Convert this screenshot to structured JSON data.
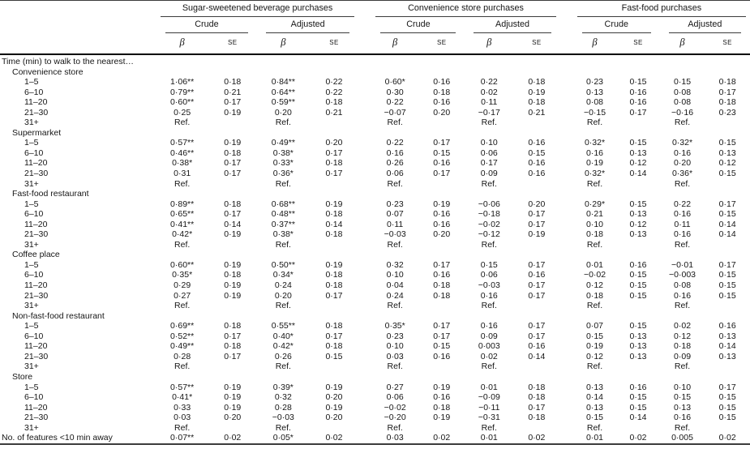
{
  "table": {
    "row_header": "Time (min) to walk to the nearest…",
    "groups": [
      {
        "label": "Sugar-sweetened beverage purchases"
      },
      {
        "label": "Convenience store purchases"
      },
      {
        "label": "Fast-food purchases"
      }
    ],
    "sub_labels": [
      "Crude",
      "Adjusted"
    ],
    "stat_labels": [
      "β",
      "SE"
    ],
    "sections": [
      {
        "label": "Convenience store",
        "rows": [
          {
            "label": "1–5",
            "values": [
              "1·06**",
              "0·18",
              "0·84**",
              "0·22",
              "0·60*",
              "0·16",
              "0·22",
              "0·18",
              "0·23",
              "0·15",
              "0·15",
              "0·18"
            ]
          },
          {
            "label": "6–10",
            "values": [
              "0·79**",
              "0·21",
              "0·64**",
              "0·22",
              "0·30",
              "0·18",
              "0·02",
              "0·19",
              "0·13",
              "0·16",
              "0·08",
              "0·17"
            ]
          },
          {
            "label": "11–20",
            "values": [
              "0·60**",
              "0·17",
              "0·59**",
              "0·18",
              "0·22",
              "0·16",
              "0·11",
              "0·18",
              "0·08",
              "0·16",
              "0·08",
              "0·18"
            ]
          },
          {
            "label": "21–30",
            "values": [
              "0·25",
              "0·19",
              "0·20",
              "0·21",
              "−0·07",
              "0·20",
              "−0·17",
              "0·21",
              "−0·15",
              "0·17",
              "−0·16",
              "0·23"
            ]
          },
          {
            "label": "31+",
            "values": [
              "Ref.",
              "",
              "Ref.",
              "",
              "Ref.",
              "",
              "Ref.",
              "",
              "Ref.",
              "",
              "Ref.",
              ""
            ]
          }
        ]
      },
      {
        "label": "Supermarket",
        "rows": [
          {
            "label": "1–5",
            "values": [
              "0·57**",
              "0·19",
              "0·49**",
              "0·20",
              "0·22",
              "0·17",
              "0·10",
              "0·16",
              "0·32*",
              "0·15",
              "0·32*",
              "0·15"
            ]
          },
          {
            "label": "6–10",
            "values": [
              "0·46**",
              "0·18",
              "0·38*",
              "0·17",
              "0·16",
              "0·15",
              "0·06",
              "0·15",
              "0·16",
              "0·13",
              "0·16",
              "0·13"
            ]
          },
          {
            "label": "11–20",
            "values": [
              "0·38*",
              "0·17",
              "0·33*",
              "0·18",
              "0·26",
              "0·16",
              "0·17",
              "0·16",
              "0·19",
              "0·12",
              "0·20",
              "0·12"
            ]
          },
          {
            "label": "21–30",
            "values": [
              "0·31",
              "0·17",
              "0·36*",
              "0·17",
              "0·06",
              "0·17",
              "0·09",
              "0·16",
              "0·32*",
              "0·14",
              "0·36*",
              "0·15"
            ]
          },
          {
            "label": "31+",
            "values": [
              "Ref.",
              "",
              "Ref.",
              "",
              "Ref.",
              "",
              "Ref.",
              "",
              "Ref.",
              "",
              "Ref.",
              ""
            ]
          }
        ]
      },
      {
        "label": "Fast-food restaurant",
        "rows": [
          {
            "label": "1–5",
            "values": [
              "0·89**",
              "0·18",
              "0·68**",
              "0·19",
              "0·23",
              "0·19",
              "−0·06",
              "0·20",
              "0·29*",
              "0·15",
              "0·22",
              "0·17"
            ]
          },
          {
            "label": "6–10",
            "values": [
              "0·65**",
              "0·17",
              "0·48**",
              "0·18",
              "0·07",
              "0·16",
              "−0·18",
              "0·17",
              "0·21",
              "0·13",
              "0·16",
              "0·15"
            ]
          },
          {
            "label": "11–20",
            "values": [
              "0·41**",
              "0·14",
              "0·37**",
              "0·14",
              "0·11",
              "0·16",
              "−0·02",
              "0·17",
              "0·10",
              "0·12",
              "0·11",
              "0·14"
            ]
          },
          {
            "label": "21–30",
            "values": [
              "0·42*",
              "0·19",
              "0·38*",
              "0·18",
              "−0·03",
              "0·20",
              "−0·12",
              "0·19",
              "0·18",
              "0·13",
              "0·16",
              "0·14"
            ]
          },
          {
            "label": "31+",
            "values": [
              "Ref.",
              "",
              "Ref.",
              "",
              "Ref.",
              "",
              "Ref.",
              "",
              "Ref.",
              "",
              "Ref.",
              ""
            ]
          }
        ]
      },
      {
        "label": "Coffee place",
        "rows": [
          {
            "label": "1–5",
            "values": [
              "0·60**",
              "0·19",
              "0·50**",
              "0·19",
              "0·32",
              "0·17",
              "0·15",
              "0·17",
              "0·01",
              "0·16",
              "−0·01",
              "0·17"
            ]
          },
          {
            "label": "6–10",
            "values": [
              "0·35*",
              "0·18",
              "0·34*",
              "0·18",
              "0·10",
              "0·16",
              "0·06",
              "0·16",
              "−0·02",
              "0·15",
              "−0·003",
              "0·15"
            ]
          },
          {
            "label": "11–20",
            "values": [
              "0·29",
              "0·19",
              "0·24",
              "0·18",
              "0·04",
              "0·18",
              "−0·03",
              "0·17",
              "0·12",
              "0·15",
              "0·08",
              "0·15"
            ]
          },
          {
            "label": "21–30",
            "values": [
              "0·27",
              "0·19",
              "0·20",
              "0·17",
              "0·24",
              "0·18",
              "0·16",
              "0·17",
              "0·18",
              "0·15",
              "0·16",
              "0·15"
            ]
          },
          {
            "label": "31+",
            "values": [
              "Ref.",
              "",
              "Ref.",
              "",
              "Ref.",
              "",
              "Ref.",
              "",
              "Ref.",
              "",
              "Ref.",
              ""
            ]
          }
        ]
      },
      {
        "label": "Non-fast-food restaurant",
        "rows": [
          {
            "label": "1–5",
            "values": [
              "0·69**",
              "0·18",
              "0·55**",
              "0·18",
              "0·35*",
              "0·17",
              "0·16",
              "0·17",
              "0·07",
              "0·15",
              "0·02",
              "0·16"
            ]
          },
          {
            "label": "6–10",
            "values": [
              "0·52**",
              "0·17",
              "0·40*",
              "0·17",
              "0·23",
              "0·17",
              "0·09",
              "0·17",
              "0·15",
              "0·13",
              "0·12",
              "0·13"
            ]
          },
          {
            "label": "11–20",
            "values": [
              "0·49**",
              "0·18",
              "0·42*",
              "0·18",
              "0·10",
              "0·15",
              "0·003",
              "0·16",
              "0·19",
              "0·13",
              "0·18",
              "0·14"
            ]
          },
          {
            "label": "21–30",
            "values": [
              "0·28",
              "0·17",
              "0·26",
              "0·15",
              "0·03",
              "0·16",
              "0·02",
              "0·14",
              "0·12",
              "0·13",
              "0·09",
              "0·13"
            ]
          },
          {
            "label": "31+",
            "values": [
              "Ref.",
              "",
              "Ref.",
              "",
              "Ref.",
              "",
              "Ref.",
              "",
              "Ref.",
              "",
              "Ref.",
              ""
            ]
          }
        ]
      },
      {
        "label": "Store",
        "rows": [
          {
            "label": "1–5",
            "values": [
              "0·57**",
              "0·19",
              "0·39*",
              "0·19",
              "0·27",
              "0·19",
              "0·01",
              "0·18",
              "0·13",
              "0·16",
              "0·10",
              "0·17"
            ]
          },
          {
            "label": "6–10",
            "values": [
              "0·41*",
              "0·19",
              "0·32",
              "0·20",
              "0·06",
              "0·16",
              "−0·09",
              "0·18",
              "0·14",
              "0·15",
              "0·15",
              "0·15"
            ]
          },
          {
            "label": "11–20",
            "values": [
              "0·33",
              "0·19",
              "0·28",
              "0·19",
              "−0·02",
              "0·18",
              "−0·11",
              "0·17",
              "0·13",
              "0·15",
              "0·13",
              "0·15"
            ]
          },
          {
            "label": "21–30",
            "values": [
              "0·03",
              "0·20",
              "−0·03",
              "0·20",
              "−0·20",
              "0·19",
              "−0·31",
              "0·18",
              "0·15",
              "0·14",
              "0·16",
              "0·15"
            ]
          },
          {
            "label": "31+",
            "values": [
              "Ref.",
              "",
              "Ref.",
              "",
              "Ref.",
              "",
              "Ref.",
              "",
              "Ref.",
              "",
              "Ref.",
              ""
            ]
          }
        ]
      }
    ],
    "footer": {
      "label": "No. of features <10 min away",
      "values": [
        "0·07**",
        "0·02",
        "0·05*",
        "0·02",
        "0·03",
        "0·02",
        "0·01",
        "0·02",
        "0·01",
        "0·02",
        "0·005",
        "0·02"
      ]
    }
  }
}
